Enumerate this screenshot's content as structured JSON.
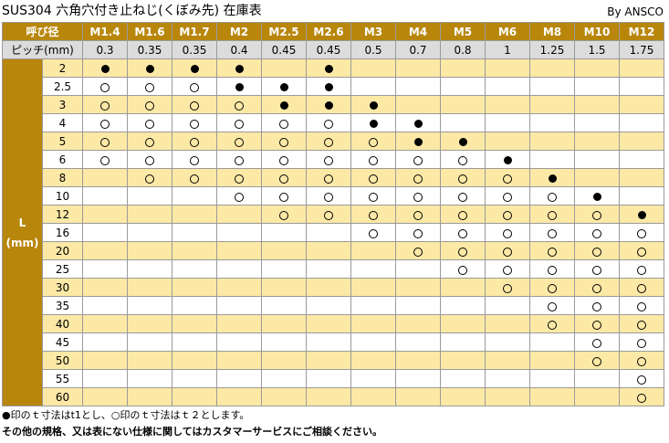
{
  "title": "SUS304 六角穴付き止ねじ(くぼみ先) 在庫表",
  "brand": "By ANSCO",
  "table": {
    "corner_label": "呼び径",
    "pitch_label": "ピッチ(mm)",
    "axis_label_line1": "L",
    "axis_label_line2": "(mm)",
    "sizes": [
      "M1.4",
      "M1.6",
      "M1.7",
      "M2",
      "M2.5",
      "M2.6",
      "M3",
      "M4",
      "M5",
      "M6",
      "M8",
      "M10",
      "M12"
    ],
    "pitches": [
      "0.3",
      "0.35",
      "0.35",
      "0.4",
      "0.45",
      "0.45",
      "0.5",
      "0.7",
      "0.8",
      "1",
      "1.25",
      "1.5",
      "1.75"
    ],
    "rows": [
      {
        "length": "2",
        "marks": [
          "●",
          "●",
          "●",
          "●",
          "",
          "●",
          "",
          "",
          "",
          "",
          "",
          "",
          ""
        ]
      },
      {
        "length": "2.5",
        "marks": [
          "○",
          "○",
          "○",
          "●",
          "●",
          "●",
          "",
          "",
          "",
          "",
          "",
          "",
          ""
        ]
      },
      {
        "length": "3",
        "marks": [
          "○",
          "○",
          "○",
          "○",
          "●",
          "●",
          "●",
          "",
          "",
          "",
          "",
          "",
          ""
        ]
      },
      {
        "length": "4",
        "marks": [
          "○",
          "○",
          "○",
          "○",
          "○",
          "○",
          "●",
          "●",
          "",
          "",
          "",
          "",
          ""
        ]
      },
      {
        "length": "5",
        "marks": [
          "○",
          "○",
          "○",
          "○",
          "○",
          "○",
          "○",
          "●",
          "●",
          "",
          "",
          "",
          ""
        ]
      },
      {
        "length": "6",
        "marks": [
          "○",
          "○",
          "○",
          "○",
          "○",
          "○",
          "○",
          "○",
          "○",
          "●",
          "",
          "",
          ""
        ]
      },
      {
        "length": "8",
        "marks": [
          "",
          "○",
          "○",
          "○",
          "○",
          "○",
          "○",
          "○",
          "○",
          "○",
          "●",
          "",
          ""
        ]
      },
      {
        "length": "10",
        "marks": [
          "",
          "",
          "",
          "○",
          "○",
          "○",
          "○",
          "○",
          "○",
          "○",
          "○",
          "●",
          ""
        ]
      },
      {
        "length": "12",
        "marks": [
          "",
          "",
          "",
          "",
          "○",
          "○",
          "○",
          "○",
          "○",
          "○",
          "○",
          "○",
          "●"
        ]
      },
      {
        "length": "16",
        "marks": [
          "",
          "",
          "",
          "",
          "",
          "",
          "○",
          "○",
          "○",
          "○",
          "○",
          "○",
          "○"
        ]
      },
      {
        "length": "20",
        "marks": [
          "",
          "",
          "",
          "",
          "",
          "",
          "",
          "○",
          "○",
          "○",
          "○",
          "○",
          "○"
        ]
      },
      {
        "length": "25",
        "marks": [
          "",
          "",
          "",
          "",
          "",
          "",
          "",
          "",
          "○",
          "○",
          "○",
          "○",
          "○"
        ]
      },
      {
        "length": "30",
        "marks": [
          "",
          "",
          "",
          "",
          "",
          "",
          "",
          "",
          "",
          "○",
          "○",
          "○",
          "○"
        ]
      },
      {
        "length": "35",
        "marks": [
          "",
          "",
          "",
          "",
          "",
          "",
          "",
          "",
          "",
          "",
          "○",
          "○",
          "○"
        ]
      },
      {
        "length": "40",
        "marks": [
          "",
          "",
          "",
          "",
          "",
          "",
          "",
          "",
          "",
          "",
          "○",
          "○",
          "○"
        ]
      },
      {
        "length": "45",
        "marks": [
          "",
          "",
          "",
          "",
          "",
          "",
          "",
          "",
          "",
          "",
          "",
          "○",
          "○"
        ]
      },
      {
        "length": "50",
        "marks": [
          "",
          "",
          "",
          "",
          "",
          "",
          "",
          "",
          "",
          "",
          "",
          "○",
          "○"
        ]
      },
      {
        "length": "55",
        "marks": [
          "",
          "",
          "",
          "",
          "",
          "",
          "",
          "",
          "",
          "",
          "",
          "",
          "○"
        ]
      },
      {
        "length": "60",
        "marks": [
          "",
          "",
          "",
          "",
          "",
          "",
          "",
          "",
          "",
          "",
          "",
          "",
          "○"
        ]
      }
    ]
  },
  "notes": [
    "●印のｔ寸法はt1とし、○印のｔ寸法はｔ２とします。",
    "その他の規格、又は表にない仕様に関してはカスタマーサービスにご相談ください。"
  ],
  "colors": {
    "header_gold": "#b8860b",
    "row_tint": "#fde9a6",
    "pitch_grey": "#dcdcdc"
  }
}
